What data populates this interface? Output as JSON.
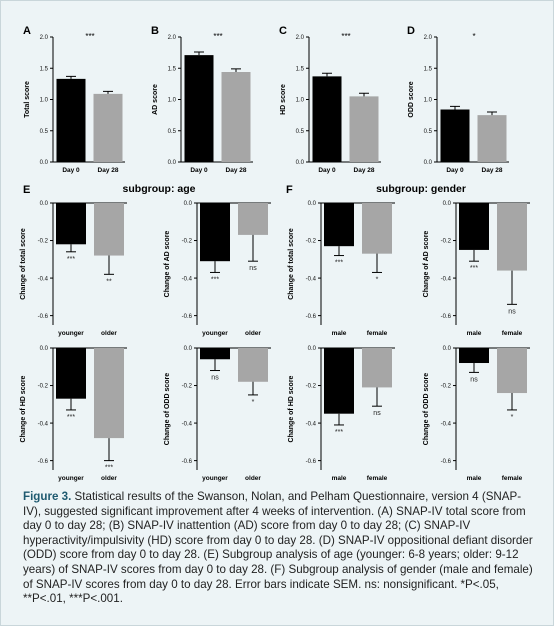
{
  "chart_data": [
    {
      "type": "bar",
      "panel": "A",
      "ylabel": "Total score",
      "categories": [
        "Day 0",
        "Day 28"
      ],
      "values": [
        1.33,
        1.09
      ],
      "errors": [
        0.04,
        0.04
      ],
      "ylim": [
        0,
        2.0
      ],
      "yticks": [
        "0.0",
        "0.5",
        "1.0",
        "1.5",
        "2.0"
      ],
      "significance": "***",
      "colors": [
        "#000000",
        "#a6a6a6"
      ]
    },
    {
      "type": "bar",
      "panel": "B",
      "ylabel": "AD score",
      "categories": [
        "Day 0",
        "Day 28"
      ],
      "values": [
        1.71,
        1.44
      ],
      "errors": [
        0.05,
        0.05
      ],
      "ylim": [
        0,
        2.0
      ],
      "yticks": [
        "0.0",
        "0.5",
        "1.0",
        "1.5",
        "2.0"
      ],
      "significance": "***",
      "colors": [
        "#000000",
        "#a6a6a6"
      ]
    },
    {
      "type": "bar",
      "panel": "C",
      "ylabel": "HD score",
      "categories": [
        "Day 0",
        "Day 28"
      ],
      "values": [
        1.37,
        1.05
      ],
      "errors": [
        0.05,
        0.05
      ],
      "ylim": [
        0,
        2.0
      ],
      "yticks": [
        "0.0",
        "0.5",
        "1.0",
        "1.5",
        "2.0"
      ],
      "significance": "***",
      "colors": [
        "#000000",
        "#a6a6a6"
      ]
    },
    {
      "type": "bar",
      "panel": "D",
      "ylabel": "ODD score",
      "categories": [
        "Day 0",
        "Day 28"
      ],
      "values": [
        0.84,
        0.75
      ],
      "errors": [
        0.05,
        0.05
      ],
      "ylim": [
        0,
        2.0
      ],
      "yticks": [
        "0.0",
        "0.5",
        "1.0",
        "1.5",
        "2.0"
      ],
      "significance": "*",
      "colors": [
        "#000000",
        "#a6a6a6"
      ]
    },
    {
      "type": "bar",
      "panel": "E",
      "subpanel": "E1",
      "ylabel": "Change of total score",
      "categories": [
        "younger",
        "older"
      ],
      "values": [
        -0.22,
        -0.28
      ],
      "errors": [
        0.04,
        0.1
      ],
      "ylim": [
        -0.65,
        0
      ],
      "yticks": [
        "0.0",
        "-0.2",
        "-0.4",
        "-0.6"
      ],
      "bar_labels": [
        "***",
        "**"
      ],
      "colors": [
        "#000000",
        "#a6a6a6"
      ]
    },
    {
      "type": "bar",
      "panel": "E",
      "subpanel": "E2",
      "ylabel": "Change of AD score",
      "categories": [
        "younger",
        "older"
      ],
      "values": [
        -0.31,
        -0.17
      ],
      "errors": [
        0.06,
        0.14
      ],
      "ylim": [
        -0.65,
        0
      ],
      "yticks": [
        "0.0",
        "-0.2",
        "-0.4",
        "-0.6"
      ],
      "bar_labels": [
        "***",
        "ns"
      ],
      "colors": [
        "#000000",
        "#a6a6a6"
      ]
    },
    {
      "type": "bar",
      "panel": "E",
      "subpanel": "E3",
      "ylabel": "Change of HD score",
      "categories": [
        "younger",
        "older"
      ],
      "values": [
        -0.27,
        -0.48
      ],
      "errors": [
        0.06,
        0.12
      ],
      "ylim": [
        -0.65,
        0
      ],
      "yticks": [
        "0.0",
        "-0.2",
        "-0.4",
        "-0.6"
      ],
      "bar_labels": [
        "***",
        "***"
      ],
      "colors": [
        "#000000",
        "#a6a6a6"
      ]
    },
    {
      "type": "bar",
      "panel": "E",
      "subpanel": "E4",
      "ylabel": "Change of ODD score",
      "categories": [
        "younger",
        "older"
      ],
      "values": [
        -0.06,
        -0.18
      ],
      "errors": [
        0.06,
        0.07
      ],
      "ylim": [
        -0.65,
        0
      ],
      "yticks": [
        "0.0",
        "-0.2",
        "-0.4",
        "-0.6"
      ],
      "bar_labels": [
        "ns",
        "*"
      ],
      "colors": [
        "#000000",
        "#a6a6a6"
      ]
    },
    {
      "type": "bar",
      "panel": "F",
      "subpanel": "F1",
      "ylabel": "Change of total score",
      "categories": [
        "male",
        "female"
      ],
      "values": [
        -0.23,
        -0.27
      ],
      "errors": [
        0.05,
        0.1
      ],
      "ylim": [
        -0.65,
        0
      ],
      "yticks": [
        "0.0",
        "-0.2",
        "-0.4",
        "-0.6"
      ],
      "bar_labels": [
        "***",
        "*"
      ],
      "colors": [
        "#000000",
        "#a6a6a6"
      ]
    },
    {
      "type": "bar",
      "panel": "F",
      "subpanel": "F2",
      "ylabel": "Change of AD score",
      "categories": [
        "male",
        "female"
      ],
      "values": [
        -0.25,
        -0.36
      ],
      "errors": [
        0.06,
        0.18
      ],
      "ylim": [
        -0.65,
        0
      ],
      "yticks": [
        "0.0",
        "-0.2",
        "-0.4",
        "-0.6"
      ],
      "bar_labels": [
        "***",
        "ns"
      ],
      "colors": [
        "#000000",
        "#a6a6a6"
      ]
    },
    {
      "type": "bar",
      "panel": "F",
      "subpanel": "F3",
      "ylabel": "Change of HD score",
      "categories": [
        "male",
        "female"
      ],
      "values": [
        -0.35,
        -0.21
      ],
      "errors": [
        0.06,
        0.1
      ],
      "ylim": [
        -0.65,
        0
      ],
      "yticks": [
        "0.0",
        "-0.2",
        "-0.4",
        "-0.6"
      ],
      "bar_labels": [
        "***",
        "ns"
      ],
      "colors": [
        "#000000",
        "#a6a6a6"
      ]
    },
    {
      "type": "bar",
      "panel": "F",
      "subpanel": "F4",
      "ylabel": "Change of ODD score",
      "categories": [
        "male",
        "female"
      ],
      "values": [
        -0.08,
        -0.24
      ],
      "errors": [
        0.05,
        0.09
      ],
      "ylim": [
        -0.65,
        0
      ],
      "yticks": [
        "0.0",
        "-0.2",
        "-0.4",
        "-0.6"
      ],
      "bar_labels": [
        "ns",
        "*"
      ],
      "colors": [
        "#000000",
        "#a6a6a6"
      ]
    }
  ],
  "group_titles": {
    "age": "subgroup: age",
    "gender": "subgroup: gender"
  },
  "caption": {
    "label": "Figure 3.",
    "text": " Statistical results of the Swanson, Nolan, and Pelham Questionnaire, version 4 (SNAP-IV), suggested significant improvement after 4 weeks of intervention. (A) SNAP-IV total score from day 0 to day 28; (B) SNAP-IV inattention (AD) score from day 0 to day 28; (C) SNAP-IV hyperactivity/impulsivity (HD) score from day 0 to day 28. (D) SNAP-IV oppositional defiant disorder (ODD) score from day 0 to day 28. (E) Subgroup analysis of age (younger: 6-8 years; older: 9-12 years) of SNAP-IV scores from day 0 to day 28. (F) Subgroup analysis of gender (male and female) of SNAP-IV scores from day 0 to day 28. Error bars indicate SEM. ns: nonsignificant. ",
    "sig_text": "*P<.05, **P<.01, ***P<.001."
  }
}
